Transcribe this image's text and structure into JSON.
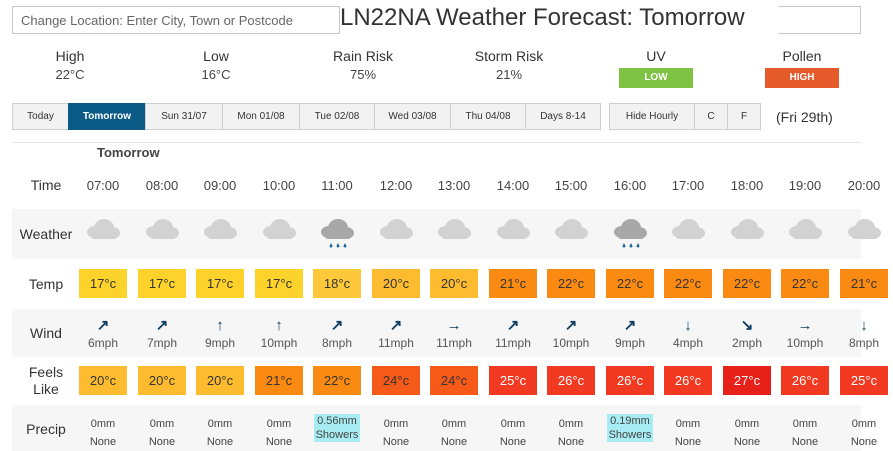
{
  "search": {
    "placeholder": "Change Location: Enter City, Town or Postcode"
  },
  "page_title": "LN22NA Weather Forecast: Tomorrow",
  "summary": {
    "high": {
      "label": "High",
      "value": "22°C"
    },
    "low": {
      "label": "Low",
      "value": "16°C"
    },
    "rain": {
      "label": "Rain Risk",
      "value": "75%"
    },
    "storm": {
      "label": "Storm Risk",
      "value": "21%"
    },
    "uv": {
      "label": "UV",
      "value": "LOW",
      "color": "#7dc242"
    },
    "pollen": {
      "label": "Pollen",
      "value": "HIGH",
      "color": "#e55a2b"
    }
  },
  "tabs": [
    "Today",
    "Tomorrow",
    "Sun 31/07",
    "Mon 01/08",
    "Tue 02/08",
    "Wed 03/08",
    "Thu 04/08",
    "Days 8-14"
  ],
  "active_tab": "Tomorrow",
  "options": [
    "Hide Hourly",
    "C",
    "F"
  ],
  "date_note": "(Fri 29th)",
  "day_label": "Tomorrow",
  "row_labels": {
    "time": "Time",
    "weather": "Weather",
    "temp": "Temp",
    "wind": "Wind",
    "feels_1": "Feels",
    "feels_2": "Like",
    "precip": "Precip"
  },
  "hours": [
    {
      "time": "07:00",
      "weather": "cloud-icon",
      "temp": "17°c",
      "wind_dir": "NE",
      "wind": "6mph",
      "feels": "20°c",
      "precip_amt": "0mm",
      "precip_type": "None"
    },
    {
      "time": "08:00",
      "weather": "cloud-icon",
      "temp": "17°c",
      "wind_dir": "NE",
      "wind": "7mph",
      "feels": "20°c",
      "precip_amt": "0mm",
      "precip_type": "None"
    },
    {
      "time": "09:00",
      "weather": "cloud-icon",
      "temp": "17°c",
      "wind_dir": "N",
      "wind": "9mph",
      "feels": "20°c",
      "precip_amt": "0mm",
      "precip_type": "None"
    },
    {
      "time": "10:00",
      "weather": "cloud-icon",
      "temp": "17°c",
      "wind_dir": "N",
      "wind": "10mph",
      "feels": "21°c",
      "precip_amt": "0mm",
      "precip_type": "None"
    },
    {
      "time": "11:00",
      "weather": "rain-cloud-icon",
      "temp": "18°c",
      "wind_dir": "NE",
      "wind": "8mph",
      "feels": "22°c",
      "precip_amt": "0.56mm",
      "precip_type": "Showers"
    },
    {
      "time": "12:00",
      "weather": "cloud-icon",
      "temp": "20°c",
      "wind_dir": "NE",
      "wind": "11mph",
      "feels": "24°c",
      "precip_amt": "0mm",
      "precip_type": "None"
    },
    {
      "time": "13:00",
      "weather": "cloud-icon",
      "temp": "20°c",
      "wind_dir": "E",
      "wind": "11mph",
      "feels": "24°c",
      "precip_amt": "0mm",
      "precip_type": "None"
    },
    {
      "time": "14:00",
      "weather": "cloud-icon",
      "temp": "21°c",
      "wind_dir": "NE",
      "wind": "11mph",
      "feels": "25°c",
      "precip_amt": "0mm",
      "precip_type": "None"
    },
    {
      "time": "15:00",
      "weather": "cloud-icon",
      "temp": "22°c",
      "wind_dir": "NE",
      "wind": "10mph",
      "feels": "26°c",
      "precip_amt": "0mm",
      "precip_type": "None"
    },
    {
      "time": "16:00",
      "weather": "rain-cloud-icon",
      "temp": "22°c",
      "wind_dir": "NE",
      "wind": "9mph",
      "feels": "26°c",
      "precip_amt": "0.19mm",
      "precip_type": "Showers"
    },
    {
      "time": "17:00",
      "weather": "cloud-icon",
      "temp": "22°c",
      "wind_dir": "S",
      "wind": "4mph",
      "feels": "26°c",
      "precip_amt": "0mm",
      "precip_type": "None"
    },
    {
      "time": "18:00",
      "weather": "cloud-icon",
      "temp": "22°c",
      "wind_dir": "SE",
      "wind": "2mph",
      "feels": "27°c",
      "precip_amt": "0mm",
      "precip_type": "None"
    },
    {
      "time": "19:00",
      "weather": "cloud-icon",
      "temp": "22°c",
      "wind_dir": "E",
      "wind": "10mph",
      "feels": "26°c",
      "precip_amt": "0mm",
      "precip_type": "None"
    },
    {
      "time": "20:00",
      "weather": "cloud-icon",
      "temp": "21°c",
      "wind_dir": "S",
      "wind": "8mph",
      "feels": "25°c",
      "precip_amt": "0mm",
      "precip_type": "None"
    }
  ]
}
